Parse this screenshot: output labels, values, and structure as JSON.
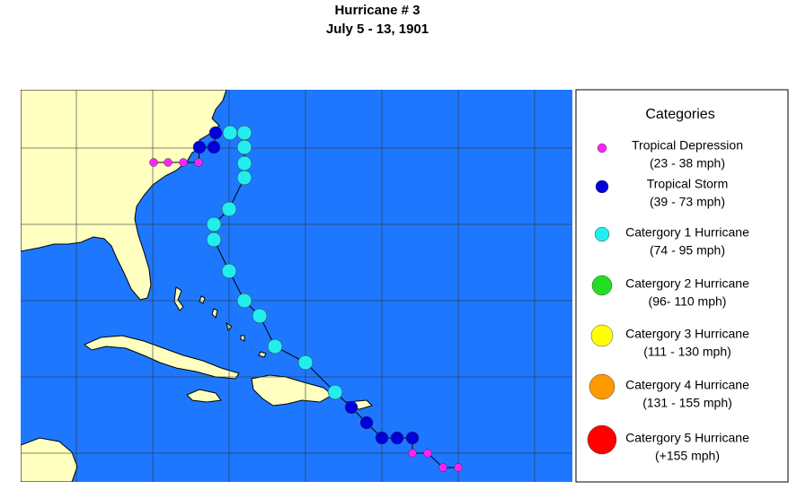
{
  "header": {
    "title": "Hurricane # 3",
    "subtitle": "July 5 - 13, 1901"
  },
  "legend": {
    "title": "Categories",
    "items": [
      {
        "name": "Tropical Depression",
        "range": "(23 - 38 mph)",
        "color": "#ff22ff"
      },
      {
        "name": "Tropical Storm",
        "range": "(39 - 73 mph)",
        "color": "#0000dd"
      },
      {
        "name": "Catergory 1 Hurricane",
        "range": "(74 - 95 mph)",
        "color": "#22eeee"
      },
      {
        "name": "Catergory 2 Hurricane",
        "range": "(96- 110 mph)",
        "color": "#22dd22"
      },
      {
        "name": "Catergory 3 Hurricane",
        "range": "(111 - 130 mph)",
        "color": "#ffff00"
      },
      {
        "name": "Catergory 4 Hurricane",
        "range": "(131 - 155 mph)",
        "color": "#ff9900"
      },
      {
        "name": "Catergory 5 Hurricane",
        "range": "(+155 mph)",
        "color": "#ff0000"
      }
    ]
  }
}
